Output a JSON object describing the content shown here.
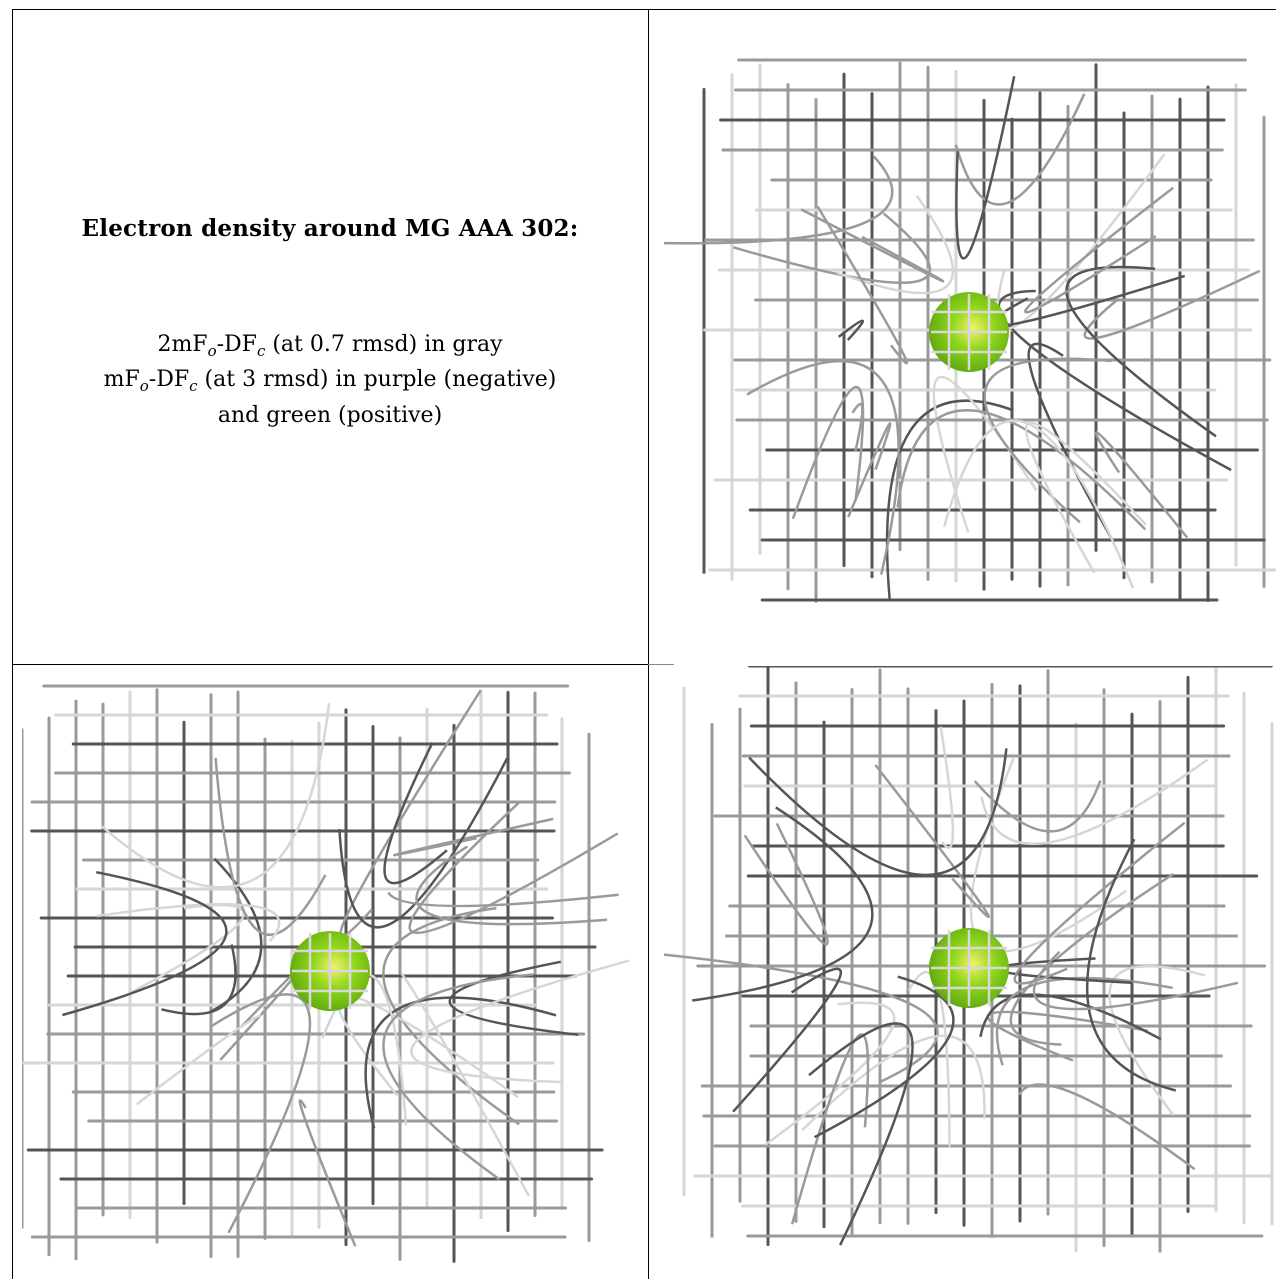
{
  "legend": {
    "title": "Electron density around MG AAA 302:",
    "line1": {
      "prefix": "2mF",
      "sub1": "o",
      "mid": "-DF",
      "sub2": "c",
      "suffix": " (at 0.7 rmsd) in gray"
    },
    "line2": {
      "prefix": "mF",
      "sub1": "o",
      "mid": "-DF",
      "sub2": "c",
      "suffix": " (at 3 rmsd) in purple (negative)"
    },
    "line3": "and green (positive)"
  },
  "views": [
    {
      "name": "view-top-right",
      "atom_color": "#8fd61a"
    },
    {
      "name": "view-bottom-left",
      "atom_color": "#8fd61a"
    },
    {
      "name": "view-bottom-right",
      "atom_color": "#8fd61a"
    }
  ],
  "colors": {
    "mesh_dark": "#555555",
    "mesh_mid": "#9a9a9a",
    "mesh_light": "#d6d6d6",
    "atom": "#8fd61a",
    "atom_highlight": "#f4f06a"
  }
}
